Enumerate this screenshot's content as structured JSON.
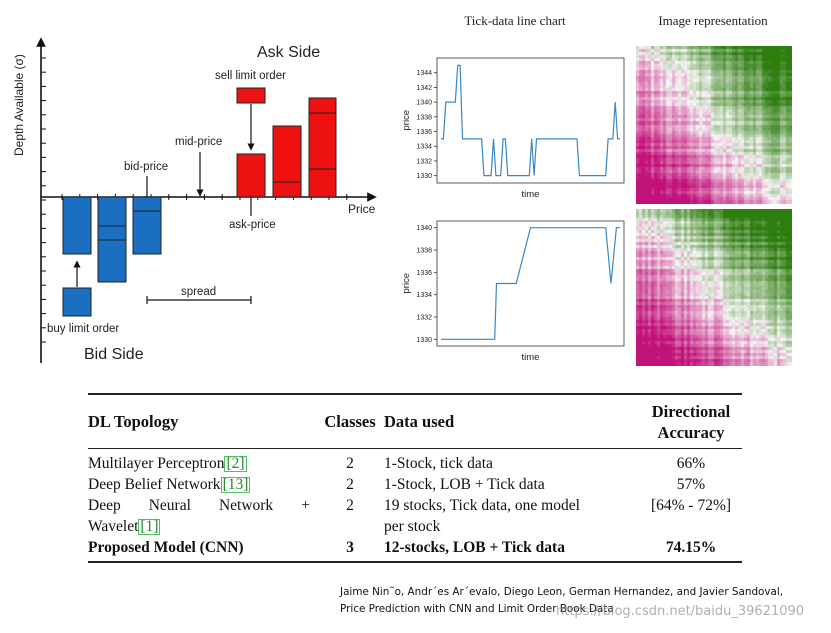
{
  "order_book_diagram": {
    "y_axis_label": "Depth Available (σ)",
    "x_axis_label": "Price",
    "ask_side_label": "Ask Side",
    "bid_side_label": "Bid Side",
    "sell_limit_order_label": "sell limit order",
    "buy_limit_order_label": "buy limit order",
    "mid_price_label": "mid-price",
    "bid_price_label": "bid-price",
    "ask_price_label": "ask-price",
    "spread_label": "spread",
    "colors": {
      "ask": "#ee1111",
      "bid": "#1a6fc0"
    }
  },
  "charts": {
    "line_chart_title": "Tick-data line chart",
    "image_title": "Image representation"
  },
  "chart_data": [
    {
      "type": "line",
      "title": "Tick-data line chart",
      "xlabel": "time",
      "ylabel": "price",
      "yticks": [
        1330,
        1332,
        1334,
        1336,
        1338,
        1340,
        1342,
        1344
      ],
      "ylim": [
        1329,
        1346
      ],
      "x": [
        0,
        1,
        2,
        3,
        4,
        5,
        6,
        7,
        8,
        9,
        10,
        11,
        12,
        13,
        14,
        15,
        16,
        17,
        18,
        19,
        20,
        21,
        22,
        23,
        24,
        25,
        26,
        27,
        28,
        29,
        30,
        31,
        32,
        33,
        34,
        35,
        36,
        37,
        38,
        39,
        40,
        41,
        42,
        43,
        44,
        45,
        46,
        47,
        48,
        49,
        50,
        51,
        52,
        53,
        54,
        55,
        56,
        57,
        58,
        59,
        60,
        61,
        62,
        63,
        64,
        65,
        66,
        67,
        68,
        69,
        70,
        71,
        72,
        73,
        74,
        75
      ],
      "y": [
        1335,
        1335,
        1340,
        1340,
        1340,
        1340,
        1340,
        1345,
        1345,
        1335,
        1335,
        1335,
        1335,
        1335,
        1335,
        1335,
        1335,
        1335,
        1330,
        1330,
        1330,
        1330,
        1335,
        1330,
        1330,
        1330,
        1335,
        1335,
        1330,
        1330,
        1330,
        1330,
        1330,
        1330,
        1330,
        1330,
        1330,
        1330,
        1335,
        1330,
        1335,
        1335,
        1335,
        1335,
        1335,
        1335,
        1335,
        1335,
        1335,
        1335,
        1335,
        1335,
        1335,
        1335,
        1335,
        1335,
        1335,
        1335,
        1330,
        1330,
        1330,
        1330,
        1330,
        1330,
        1330,
        1330,
        1330,
        1330,
        1330,
        1330,
        1335,
        1335,
        1335,
        1340,
        1335,
        1335
      ]
    },
    {
      "type": "line",
      "xlabel": "time",
      "ylabel": "price",
      "yticks": [
        1330,
        1332,
        1334,
        1336,
        1338,
        1340
      ],
      "ylim": [
        1329.4,
        1340.6
      ],
      "x": [
        0,
        10,
        20,
        30,
        31,
        40,
        42,
        50,
        60,
        70,
        80,
        92,
        95,
        98,
        100
      ],
      "y": [
        1330,
        1330,
        1330,
        1330,
        1335,
        1335,
        1335,
        1340,
        1340,
        1340,
        1340,
        1340,
        1335,
        1340,
        1340
      ]
    },
    {
      "type": "heatmap",
      "title": "Image representation",
      "description_colors": {
        "low": "#c2127a",
        "mid": "#f7f7f7",
        "high": "#2e7d0f"
      }
    },
    {
      "type": "heatmap",
      "description_colors": {
        "low": "#c2127a",
        "mid": "#f7f7f7",
        "high": "#2e7d0f"
      }
    }
  ],
  "table": {
    "headers": {
      "topology": "DL Topology",
      "classes": "Classes",
      "data": "Data used",
      "accuracy_line1": "Directional",
      "accuracy_line2": "Accuracy"
    },
    "rows": [
      {
        "topology": "Multilayer Perceptron",
        "ref": "2",
        "classes": "2",
        "data": "1-Stock, tick data",
        "accuracy": "66%"
      },
      {
        "topology": "Deep Belief Network",
        "ref": "13",
        "classes": "2",
        "data": "1-Stock, LOB + Tick data",
        "accuracy": "57%"
      },
      {
        "topology_words": [
          "Deep",
          "Neural",
          "Network",
          "+"
        ],
        "topology_line2": "Wavelet",
        "ref": "1",
        "classes": "2",
        "data_line1": "19 stocks, Tick data, one model",
        "data_line2": "per stock",
        "accuracy": "[64% - 72%]"
      },
      {
        "topology": "Proposed Model (CNN)",
        "classes": "3",
        "data": "12-stocks, LOB + Tick data",
        "accuracy": "74.15%"
      }
    ]
  },
  "citation": {
    "line1": "Jaime Nin˜o, Andr´es Ar´evalo, Diego Leon, German Hernandez, and Javier Sandoval,",
    "line2": "Price Prediction with CNN and Limit Order Book Data"
  },
  "watermark": "https://blog.csdn.net/baidu_39621090"
}
